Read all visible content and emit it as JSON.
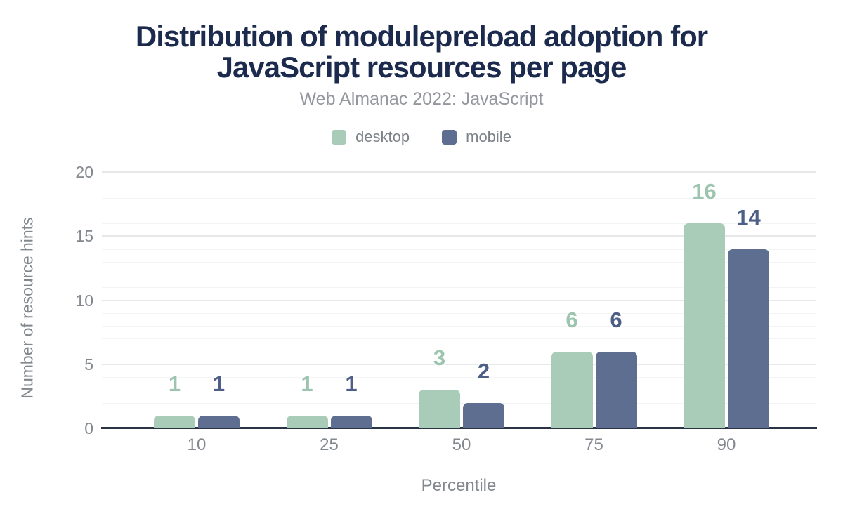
{
  "chart_data": {
    "type": "bar",
    "title": "Distribution of modulepreload adoption for JavaScript resources per page",
    "subtitle": "Web Almanac 2022: JavaScript",
    "xlabel": "Percentile",
    "ylabel": "Number of resource hints",
    "categories": [
      "10",
      "25",
      "50",
      "75",
      "90"
    ],
    "series": [
      {
        "name": "desktop",
        "color": "#a9ccb8",
        "label_color": "#9dc4ae",
        "values": [
          1,
          1,
          3,
          6,
          16
        ]
      },
      {
        "name": "mobile",
        "color": "#5d6e90",
        "label_color": "#4d5f86",
        "values": [
          1,
          1,
          2,
          6,
          14
        ]
      }
    ],
    "ylim": [
      0,
      20
    ],
    "ytick_step": 5,
    "minor_grid_step": 1,
    "yticks": [
      0,
      5,
      10,
      15,
      20
    ],
    "grid": "on",
    "legend_position": "top",
    "accent_colors": {
      "title": "#1c2b4d",
      "axis_line": "#2a3344"
    }
  }
}
